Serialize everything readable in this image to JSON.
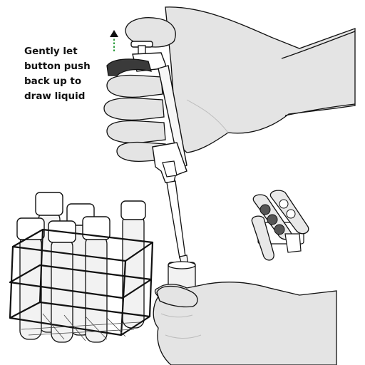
{
  "caption": {
    "lines": [
      "Gently let",
      "button push",
      "back up to",
      "draw liquid"
    ]
  },
  "arrow": {
    "direction": "up",
    "color": "#2e9e3e"
  },
  "colors": {
    "outline": "#111111",
    "glove_fill": "#e4e4e4",
    "glove_shade": "#d2d2d2",
    "tube_fill": "#f2f2f2",
    "cap_fill": "#ffffff",
    "dark_part": "#3a3a3a"
  }
}
